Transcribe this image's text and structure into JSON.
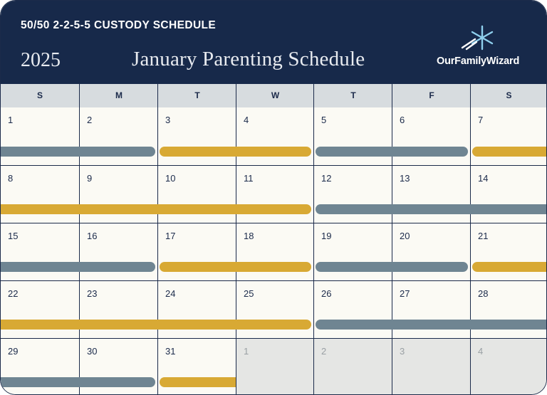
{
  "header": {
    "subtitle": "50/50 2-2-5-5 CUSTODY SCHEDULE",
    "year": "2025",
    "title": "January Parenting Schedule",
    "logo_text": "OurFamilyWizard",
    "logo_icon": "star-burst-icon"
  },
  "colors": {
    "header_bg": "#17294a",
    "parent_a": "#6f8592",
    "parent_b": "#d8a934",
    "weekday_bg": "#d7dcdf",
    "cell_bg": "#fbfaf4",
    "muted_cell_bg": "#e5e6e4"
  },
  "weekdays": [
    "S",
    "M",
    "T",
    "W",
    "T",
    "F",
    "S"
  ],
  "weeks": [
    {
      "days": [
        "1",
        "2",
        "3",
        "4",
        "5",
        "6",
        "7"
      ],
      "muted": [
        false,
        false,
        false,
        false,
        false,
        false,
        false
      ]
    },
    {
      "days": [
        "8",
        "9",
        "10",
        "11",
        "12",
        "13",
        "14"
      ],
      "muted": [
        false,
        false,
        false,
        false,
        false,
        false,
        false
      ]
    },
    {
      "days": [
        "15",
        "16",
        "17",
        "18",
        "19",
        "20",
        "21"
      ],
      "muted": [
        false,
        false,
        false,
        false,
        false,
        false,
        false
      ]
    },
    {
      "days": [
        "22",
        "23",
        "24",
        "25",
        "26",
        "27",
        "28"
      ],
      "muted": [
        false,
        false,
        false,
        false,
        false,
        false,
        false
      ]
    },
    {
      "days": [
        "29",
        "30",
        "31",
        "1",
        "2",
        "3",
        "4"
      ],
      "muted": [
        false,
        false,
        false,
        true,
        true,
        true,
        true
      ]
    }
  ],
  "custody_bars": [
    [
      {
        "parent": "a",
        "start_day": 0,
        "end_day": 1,
        "open_start": true,
        "open_end": false
      },
      {
        "parent": "b",
        "start_day": 2,
        "end_day": 3,
        "open_start": false,
        "open_end": false
      },
      {
        "parent": "a",
        "start_day": 4,
        "end_day": 5,
        "open_start": false,
        "open_end": false
      },
      {
        "parent": "b",
        "start_day": 6,
        "end_day": 6,
        "open_start": false,
        "open_end": true
      }
    ],
    [
      {
        "parent": "b",
        "start_day": 0,
        "end_day": 3,
        "open_start": true,
        "open_end": false
      },
      {
        "parent": "a",
        "start_day": 4,
        "end_day": 6,
        "open_start": false,
        "open_end": true
      }
    ],
    [
      {
        "parent": "a",
        "start_day": 0,
        "end_day": 1,
        "open_start": true,
        "open_end": false
      },
      {
        "parent": "b",
        "start_day": 2,
        "end_day": 3,
        "open_start": false,
        "open_end": false
      },
      {
        "parent": "a",
        "start_day": 4,
        "end_day": 5,
        "open_start": false,
        "open_end": false
      },
      {
        "parent": "b",
        "start_day": 6,
        "end_day": 6,
        "open_start": false,
        "open_end": true
      }
    ],
    [
      {
        "parent": "b",
        "start_day": 0,
        "end_day": 3,
        "open_start": true,
        "open_end": false
      },
      {
        "parent": "a",
        "start_day": 4,
        "end_day": 6,
        "open_start": false,
        "open_end": true
      }
    ],
    [
      {
        "parent": "a",
        "start_day": 0,
        "end_day": 1,
        "open_start": true,
        "open_end": false
      },
      {
        "parent": "b",
        "start_day": 2,
        "end_day": 2,
        "open_start": false,
        "open_end": true
      }
    ]
  ]
}
